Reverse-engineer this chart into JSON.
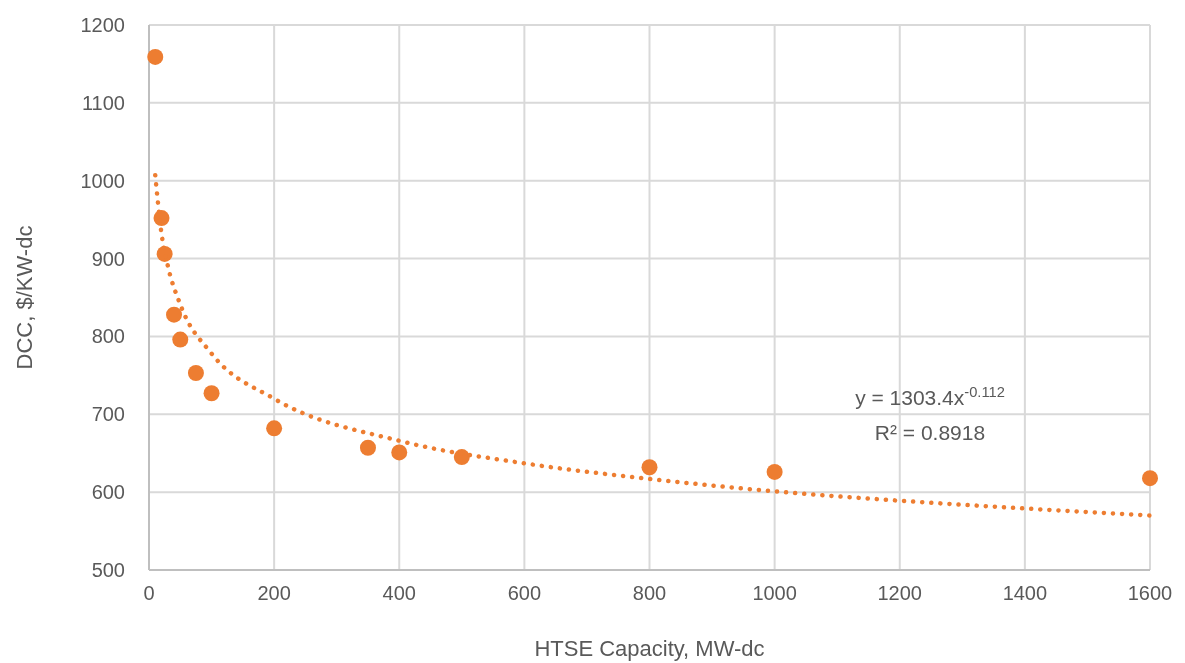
{
  "chart_data": {
    "type": "scatter",
    "xlabel": "HTSE Capacity, MW-dc",
    "ylabel": "DCC, $/KW-dc",
    "xlim": [
      0,
      1600
    ],
    "xticks": [
      0,
      200,
      400,
      600,
      800,
      1000,
      1200,
      1400,
      1600
    ],
    "ylim": [
      500,
      1200
    ],
    "yticks": [
      500,
      600,
      700,
      800,
      900,
      1000,
      1100,
      1200
    ],
    "grid": true,
    "marker": "circle",
    "series": [
      {
        "color": "#ed7d31",
        "x": [
          10,
          20,
          25,
          40,
          50,
          75,
          100,
          200,
          350,
          400,
          500,
          800,
          1000,
          1600
        ],
        "values": [
          1159,
          952,
          906,
          828,
          796,
          753,
          727,
          682,
          657,
          651,
          645,
          632,
          626,
          618
        ]
      },
      {
        "type": "line",
        "color": "#ed7d31",
        "line_style": "dotted",
        "marker": "none",
        "x": [
          10,
          20,
          30,
          50,
          100,
          200,
          400,
          600,
          800,
          1000,
          1200,
          1400,
          1600
        ],
        "values": [
          1007,
          932,
          891,
          841,
          778,
          720,
          666,
          637,
          617,
          601,
          589,
          579,
          570
        ]
      }
    ],
    "annotations": [
      "y = 1303.4x$^{-0.112}$",
      "R² = 0.8918"
    ]
  }
}
